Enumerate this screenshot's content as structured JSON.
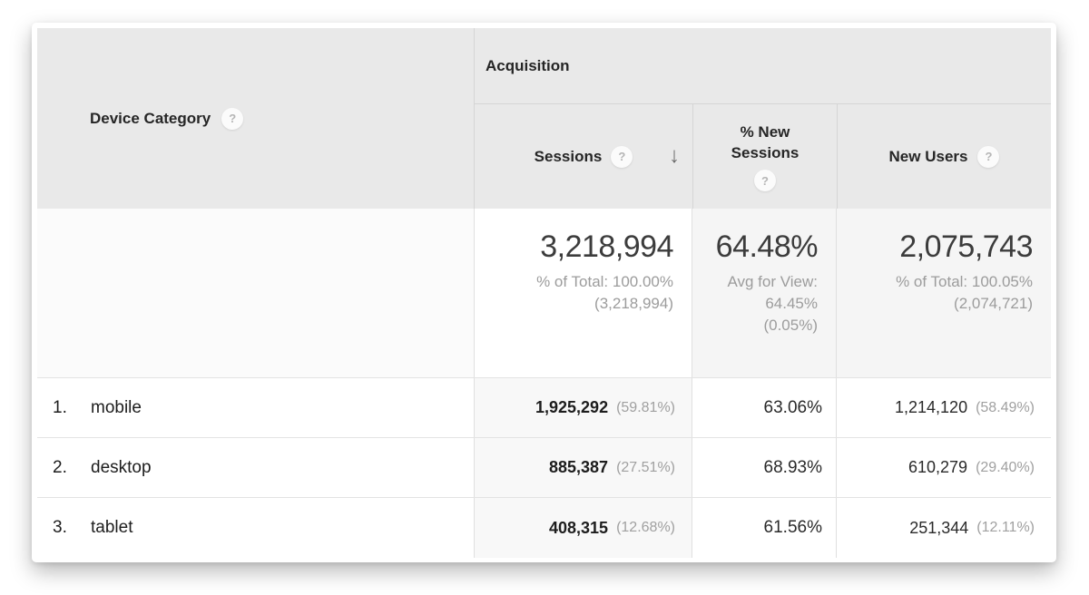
{
  "icons": {
    "help": "?",
    "sort_descending": "↓"
  },
  "table": {
    "dimension_header": {
      "label": "Device Category"
    },
    "group_header": "Acquisition",
    "columns": [
      {
        "label": "Sessions",
        "sorted": "descending"
      },
      {
        "label": "% New Sessions"
      },
      {
        "label": "New Users"
      }
    ],
    "summary": {
      "sessions": {
        "value": "3,218,994",
        "line1": "% of Total: 100.00%",
        "line2": "(3,218,994)"
      },
      "new_sessions": {
        "value": "64.48%",
        "line1": "Avg for View:",
        "line2": "64.45%",
        "line3": "(0.05%)"
      },
      "new_users": {
        "value": "2,075,743",
        "line1": "% of Total: 100.05%",
        "line2": "(2,074,721)"
      }
    },
    "rows": [
      {
        "index": "1.",
        "device": "mobile",
        "sessions": "1,925,292",
        "sessions_pct": "(59.81%)",
        "new_sessions": "63.06%",
        "new_users": "1,214,120",
        "new_users_pct": "(58.49%)"
      },
      {
        "index": "2.",
        "device": "desktop",
        "sessions": "885,387",
        "sessions_pct": "(27.51%)",
        "new_sessions": "68.93%",
        "new_users": "610,279",
        "new_users_pct": "(29.40%)"
      },
      {
        "index": "3.",
        "device": "tablet",
        "sessions": "408,315",
        "sessions_pct": "(12.68%)",
        "new_sessions": "61.56%",
        "new_users": "251,344",
        "new_users_pct": "(12.11%)"
      }
    ]
  }
}
